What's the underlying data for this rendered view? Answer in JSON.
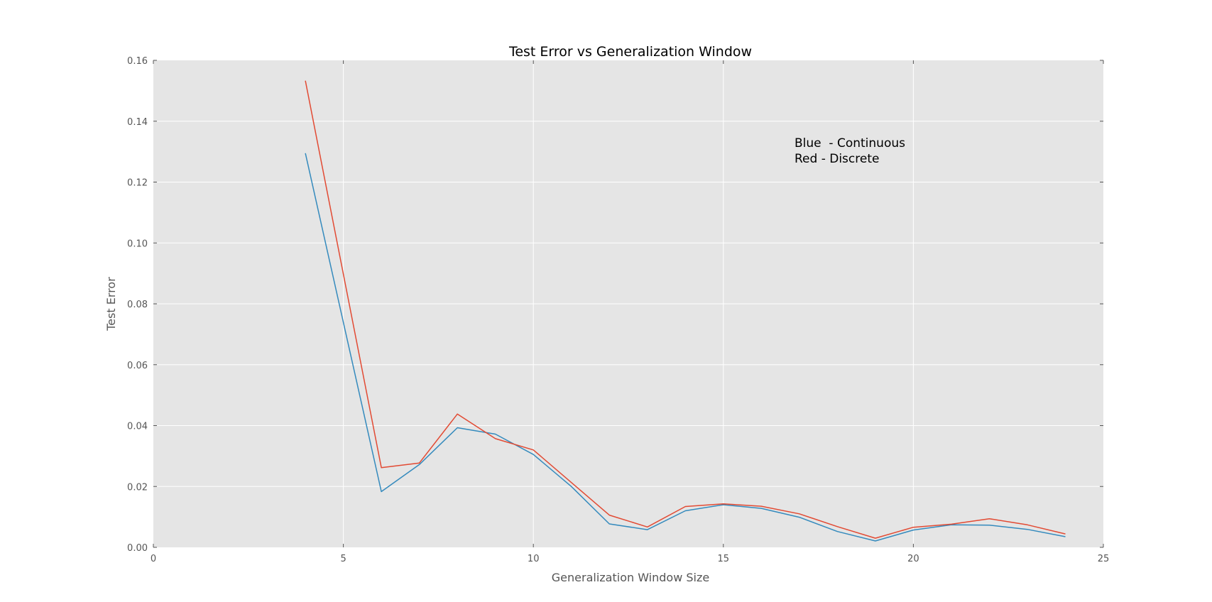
{
  "chart_data": {
    "type": "line",
    "title": "Test Error vs Generalization Window",
    "xlabel": "Generalization Window Size",
    "ylabel": "Test Error",
    "xlim": [
      0,
      25
    ],
    "ylim": [
      0.0,
      0.16
    ],
    "xticks": [
      0,
      5,
      10,
      15,
      20,
      25
    ],
    "xtick_labels": [
      "0",
      "5",
      "10",
      "15",
      "20",
      "25"
    ],
    "yticks": [
      0.0,
      0.02,
      0.04,
      0.06,
      0.08,
      0.1,
      0.12,
      0.14,
      0.16
    ],
    "ytick_labels": [
      "0.00",
      "0.02",
      "0.04",
      "0.06",
      "0.08",
      "0.10",
      "0.12",
      "0.14",
      "0.16"
    ],
    "grid": true,
    "background_color": "#e5e5e5",
    "grid_color": "#ffffff",
    "x": [
      4,
      6,
      7,
      8,
      9,
      10,
      11,
      12,
      13,
      14,
      15,
      16,
      17,
      18,
      19,
      20,
      21,
      22,
      23,
      24
    ],
    "series": [
      {
        "color": "#348abd",
        "values": [
          0.1295,
          0.0183,
          0.0272,
          0.0393,
          0.0372,
          0.0305,
          0.02,
          0.0077,
          0.0058,
          0.012,
          0.014,
          0.0128,
          0.0099,
          0.0052,
          0.0021,
          0.0057,
          0.0074,
          0.0073,
          0.0059,
          0.0035
        ]
      },
      {
        "color": "#e24a33",
        "values": [
          0.1533,
          0.0262,
          0.0277,
          0.0438,
          0.0357,
          0.032,
          0.0213,
          0.0106,
          0.0067,
          0.0134,
          0.0143,
          0.0135,
          0.011,
          0.0068,
          0.003,
          0.0066,
          0.0076,
          0.0094,
          0.0074,
          0.0044
        ]
      }
    ],
    "annotations": [
      "Blue  - Continuous",
      "Red - Discrete"
    ]
  }
}
